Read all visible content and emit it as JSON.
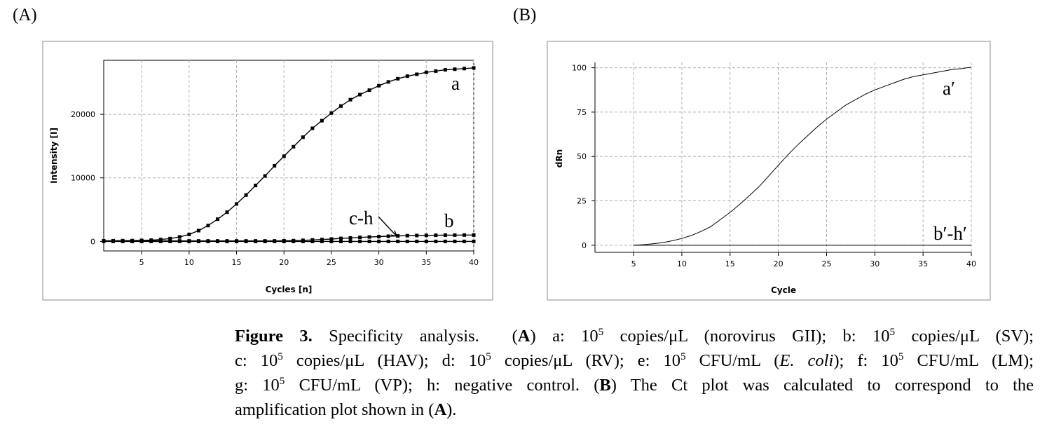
{
  "panels": {
    "a_label": "(A)",
    "b_label": "(B)"
  },
  "chart_data": [
    {
      "type": "line",
      "panel": "(A)",
      "xlabel": "Cycles [n]",
      "ylabel": "Intensity [I]",
      "xlim": [
        1,
        40
      ],
      "ylim": [
        -1500,
        28500
      ],
      "xticks": [
        5,
        10,
        15,
        20,
        25,
        30,
        35,
        40
      ],
      "yticks": [
        0,
        10000,
        20000
      ],
      "grid": true,
      "markers": "square",
      "x": [
        1,
        2,
        3,
        4,
        5,
        6,
        7,
        8,
        9,
        10,
        11,
        12,
        13,
        14,
        15,
        16,
        17,
        18,
        19,
        20,
        21,
        22,
        23,
        24,
        25,
        26,
        27,
        28,
        29,
        30,
        31,
        32,
        33,
        34,
        35,
        36,
        37,
        38,
        39,
        40
      ],
      "series": [
        {
          "name": "a",
          "values": [
            100,
            110,
            120,
            130,
            160,
            200,
            300,
            450,
            700,
            1100,
            1700,
            2500,
            3500,
            4600,
            5900,
            7300,
            8800,
            10300,
            11900,
            13400,
            14900,
            16400,
            17800,
            19000,
            20200,
            21300,
            22300,
            23100,
            23800,
            24500,
            25100,
            25600,
            26000,
            26300,
            26600,
            26800,
            27000,
            27100,
            27200,
            27300
          ]
        },
        {
          "name": "b",
          "values": [
            80,
            80,
            80,
            80,
            80,
            80,
            80,
            80,
            80,
            80,
            80,
            80,
            80,
            80,
            80,
            80,
            80,
            80,
            80,
            100,
            130,
            170,
            230,
            300,
            380,
            470,
            550,
            630,
            700,
            760,
            820,
            860,
            900,
            930,
            950,
            970,
            985,
            995,
            1000,
            1000
          ]
        },
        {
          "name": "c-h",
          "values": [
            0,
            0,
            0,
            0,
            0,
            0,
            0,
            0,
            0,
            0,
            0,
            0,
            0,
            0,
            0,
            0,
            0,
            0,
            0,
            0,
            0,
            0,
            0,
            0,
            0,
            0,
            0,
            0,
            0,
            0,
            0,
            0,
            0,
            0,
            0,
            0,
            0,
            0,
            0,
            0
          ]
        }
      ],
      "yticklabels": [
        "0",
        "10000",
        "20000"
      ]
    },
    {
      "type": "line",
      "panel": "(B)",
      "xlabel": "Cycle",
      "ylabel": "dRn",
      "xlim": [
        1,
        40
      ],
      "ylim": [
        -4,
        103
      ],
      "xticks": [
        5,
        10,
        15,
        20,
        25,
        30,
        35,
        40
      ],
      "yticks": [
        0,
        25,
        50,
        75,
        100
      ],
      "grid": true,
      "markers": "none",
      "x": [
        5,
        6,
        7,
        8,
        9,
        10,
        11,
        12,
        13,
        14,
        15,
        16,
        17,
        18,
        19,
        20,
        21,
        22,
        23,
        24,
        25,
        26,
        27,
        28,
        29,
        30,
        31,
        32,
        33,
        34,
        35,
        36,
        37,
        38,
        39,
        40
      ],
      "series": [
        {
          "name": "a′",
          "values": [
            0,
            0.3,
            0.8,
            1.5,
            2.5,
            3.8,
            5.5,
            7.8,
            10.5,
            14.5,
            18.5,
            23,
            28,
            33,
            39,
            45,
            51,
            56.5,
            61.5,
            66.5,
            71,
            75,
            79,
            82,
            85,
            87.5,
            89.5,
            91.5,
            93.5,
            95,
            96,
            97,
            98,
            99,
            99.5,
            100.3
          ]
        },
        {
          "name": "b′-h′",
          "values": [
            0,
            0,
            0,
            0,
            0,
            0,
            0,
            0,
            0,
            0,
            0,
            0,
            0,
            0,
            0,
            0,
            0,
            0,
            0,
            0,
            0,
            0,
            0,
            0,
            0,
            0,
            0,
            0,
            0,
            0,
            0,
            0,
            0,
            0,
            0,
            0
          ]
        }
      ]
    }
  ],
  "annotations": {
    "a": "a",
    "b": "b",
    "ch": "c-h",
    "a_prime": "a′",
    "bh_prime": "b′-h′"
  },
  "caption": {
    "figure_label": "Figure 3.",
    "title": " Specificity analysis.",
    "body_lines": [
      "(A) a: 10^5 copies/μL (norovirus GII); b: 10^5 copies/μL (SV);",
      "c: 10^5 copies/μL (HAV); d: 10^5 copies/μL (RV); e: 10^5 CFU/mL (E. coli); f: 10^5 CFU/mL (LM);",
      "g: 10^5 CFU/mL (VP); h: negative control. (B) The Ct plot was calculated to correspond to the",
      "amplification plot shown in (A)."
    ],
    "parts": {
      "A": "A",
      "B": "B",
      "a_text": " a:  10",
      "exp": "5",
      "a_rest": " copies/μL (norovirus GII); b:  10",
      "b_rest": " copies/μL (SV);",
      "c_text": "c: 10",
      "c_rest": " copies/μL (HAV); d:  10",
      "d_rest": " copies/μL (RV); e:  10",
      "e_rest": " CFU/mL (",
      "ecoli": "E. coli",
      "e_close": "); f:  10",
      "f_rest": " CFU/mL (LM);",
      "g_text": "g: 10",
      "g_rest": " CFU/mL (VP); h:  negative control.  (",
      "b_close": ") The Ct plot was calculated to correspond to the",
      "last": "amplification plot shown in (",
      "last_close": ")."
    }
  }
}
